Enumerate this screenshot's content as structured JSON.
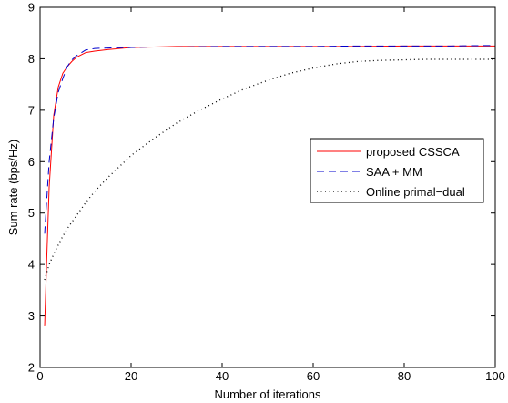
{
  "chart_data": {
    "type": "line",
    "title": "",
    "xlabel": "Number of iterations",
    "ylabel": "Sum rate (bps/Hz)",
    "xlim": [
      0,
      100
    ],
    "ylim": [
      2,
      9
    ],
    "xticks": [
      0,
      20,
      40,
      60,
      80,
      100
    ],
    "yticks": [
      2,
      3,
      4,
      5,
      6,
      7,
      8,
      9
    ],
    "grid": false,
    "legend_position": "right",
    "series": [
      {
        "name": "proposed CSSCA",
        "color": "#ff0000",
        "style": "solid",
        "x": [
          1,
          1.5,
          2,
          3,
          4,
          5,
          6,
          7,
          8,
          10,
          12,
          15,
          20,
          25,
          30,
          40,
          50,
          60,
          70,
          80,
          90,
          100
        ],
        "y": [
          2.8,
          4.2,
          5.5,
          6.9,
          7.45,
          7.72,
          7.85,
          7.95,
          8.03,
          8.12,
          8.15,
          8.18,
          8.22,
          8.23,
          8.24,
          8.24,
          8.24,
          8.24,
          8.24,
          8.25,
          8.25,
          8.25
        ]
      },
      {
        "name": "SAA + MM",
        "color": "#0000cc",
        "style": "dashed",
        "x": [
          1,
          2,
          3,
          4,
          5,
          6,
          7,
          8,
          10,
          12,
          15,
          20,
          25,
          30,
          40,
          50,
          60,
          70,
          80,
          90,
          100
        ],
        "y": [
          4.6,
          6.0,
          6.85,
          7.35,
          7.62,
          7.85,
          7.98,
          8.06,
          8.17,
          8.2,
          8.21,
          8.22,
          8.23,
          8.23,
          8.24,
          8.24,
          8.24,
          8.25,
          8.25,
          8.25,
          8.26
        ]
      },
      {
        "name": "Online primal−dual",
        "color": "#000000",
        "style": "dotted",
        "x": [
          1,
          2,
          3,
          4,
          5,
          6,
          8,
          10,
          12,
          15,
          20,
          25,
          30,
          35,
          40,
          45,
          50,
          55,
          60,
          65,
          70,
          75,
          80,
          85,
          90,
          95,
          100
        ],
        "y": [
          3.7,
          4.0,
          4.2,
          4.38,
          4.55,
          4.7,
          4.95,
          5.2,
          5.42,
          5.7,
          6.12,
          6.45,
          6.75,
          7.0,
          7.22,
          7.42,
          7.58,
          7.72,
          7.82,
          7.9,
          7.95,
          7.97,
          7.98,
          7.99,
          7.99,
          7.99,
          7.99
        ]
      }
    ]
  }
}
